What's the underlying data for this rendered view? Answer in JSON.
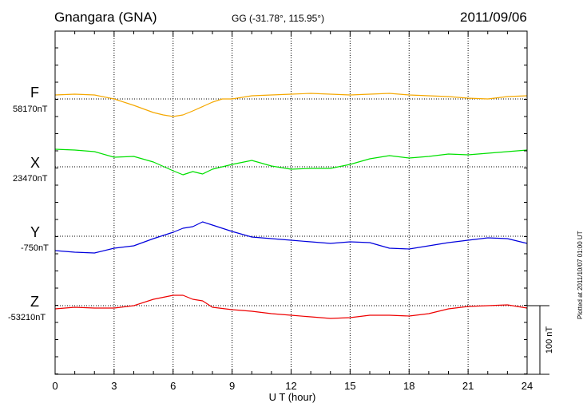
{
  "header": {
    "station": "Gnangara (GNA)",
    "coords": "GG (-31.78°, 115.95°)",
    "date": "2011/09/06"
  },
  "plotted_note": "Plotted at 2011/10/07 01:00 UT",
  "chart_data": {
    "type": "line",
    "title": "Gnangara (GNA)",
    "xlabel": "U T (hour)",
    "xlim": [
      0,
      24
    ],
    "xticks": [
      "0",
      "3",
      "6",
      "9",
      "12",
      "15",
      "18",
      "21",
      "24"
    ],
    "grid": true,
    "scale_bar": "100 nT",
    "series": [
      {
        "name": "F",
        "baseline_label": "58170nT",
        "color": "#f5a800",
        "x": [
          0,
          1,
          2,
          3,
          4,
          5,
          5.5,
          6,
          6.5,
          7,
          8,
          8.5,
          9,
          10,
          11,
          12,
          13,
          14,
          15,
          16,
          17,
          18,
          19,
          20,
          21,
          22,
          23,
          24
        ],
        "values": [
          5,
          6,
          5,
          0,
          -8,
          -17,
          -20,
          -22,
          -20,
          -15,
          -4,
          0,
          0,
          4,
          5,
          6,
          7,
          6,
          5,
          6,
          7,
          5,
          4,
          3,
          1,
          0,
          3,
          4
        ]
      },
      {
        "name": "X",
        "baseline_label": "23470nT",
        "color": "#00e000",
        "x": [
          0,
          1,
          2,
          3,
          4,
          5,
          6,
          6.5,
          7,
          7.5,
          8,
          9,
          10,
          11,
          12,
          13,
          14,
          15,
          16,
          17,
          18,
          19,
          20,
          21,
          22,
          23,
          24
        ],
        "values": [
          22,
          21,
          19,
          12,
          13,
          6,
          -5,
          -10,
          -6,
          -9,
          -3,
          3,
          8,
          1,
          -3,
          -2,
          -2,
          3,
          10,
          14,
          11,
          13,
          16,
          15,
          17,
          19,
          21
        ]
      },
      {
        "name": "Y",
        "baseline_label": "-750nT",
        "color": "#0000dd",
        "x": [
          0,
          1,
          2,
          3,
          4,
          5,
          6,
          6.5,
          7,
          7.5,
          8,
          8.5,
          9,
          10,
          11,
          12,
          13,
          14,
          15,
          16,
          17,
          18,
          19,
          20,
          21,
          22,
          23,
          24
        ],
        "values": [
          -18,
          -20,
          -21,
          -15,
          -12,
          -3,
          5,
          10,
          12,
          18,
          14,
          10,
          6,
          -1,
          -3,
          -5,
          -7,
          -9,
          -7,
          -8,
          -15,
          -16,
          -12,
          -8,
          -5,
          -2,
          -3,
          -9
        ]
      },
      {
        "name": "Z",
        "baseline_label": "-53210nT",
        "color": "#ee0000",
        "x": [
          0,
          1,
          2,
          3,
          4,
          5,
          6,
          6.5,
          7,
          7.5,
          8,
          9,
          10,
          11,
          12,
          13,
          14,
          15,
          16,
          17,
          18,
          19,
          20,
          21,
          22,
          23,
          24
        ],
        "values": [
          -4,
          -2,
          -3,
          -3,
          0,
          8,
          13,
          13,
          8,
          6,
          -2,
          -5,
          -7,
          -10,
          -12,
          -14,
          -16,
          -15,
          -12,
          -12,
          -13,
          -10,
          -4,
          -1,
          0,
          1,
          -3
        ]
      }
    ]
  }
}
